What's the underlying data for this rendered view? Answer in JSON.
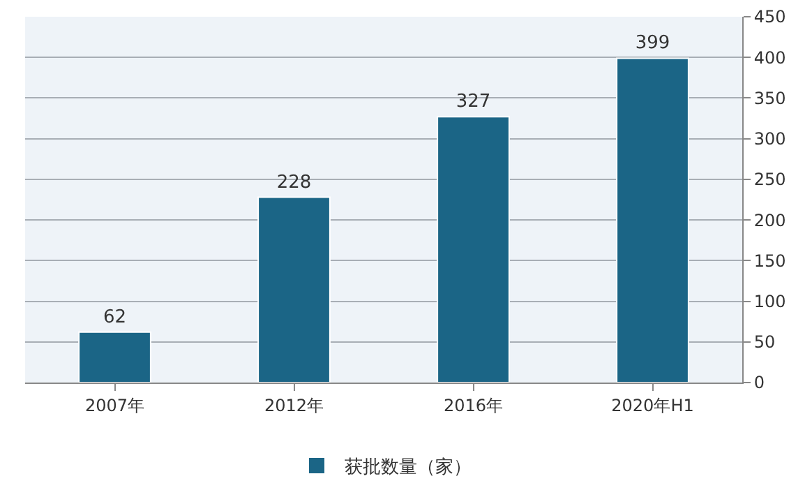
{
  "chart_data": {
    "type": "bar",
    "categories": [
      "2007年",
      "2012年",
      "2016年",
      "2020年H1"
    ],
    "series": [
      {
        "name": "获批数量（家）",
        "color": "#1b6586",
        "values": [
          62,
          228,
          327,
          399
        ]
      }
    ],
    "ylim": [
      0,
      450
    ],
    "yticks": [
      0,
      50,
      100,
      150,
      200,
      250,
      300,
      350,
      400,
      450
    ],
    "grid": "y",
    "legend": "bottom",
    "data_labels": true
  }
}
